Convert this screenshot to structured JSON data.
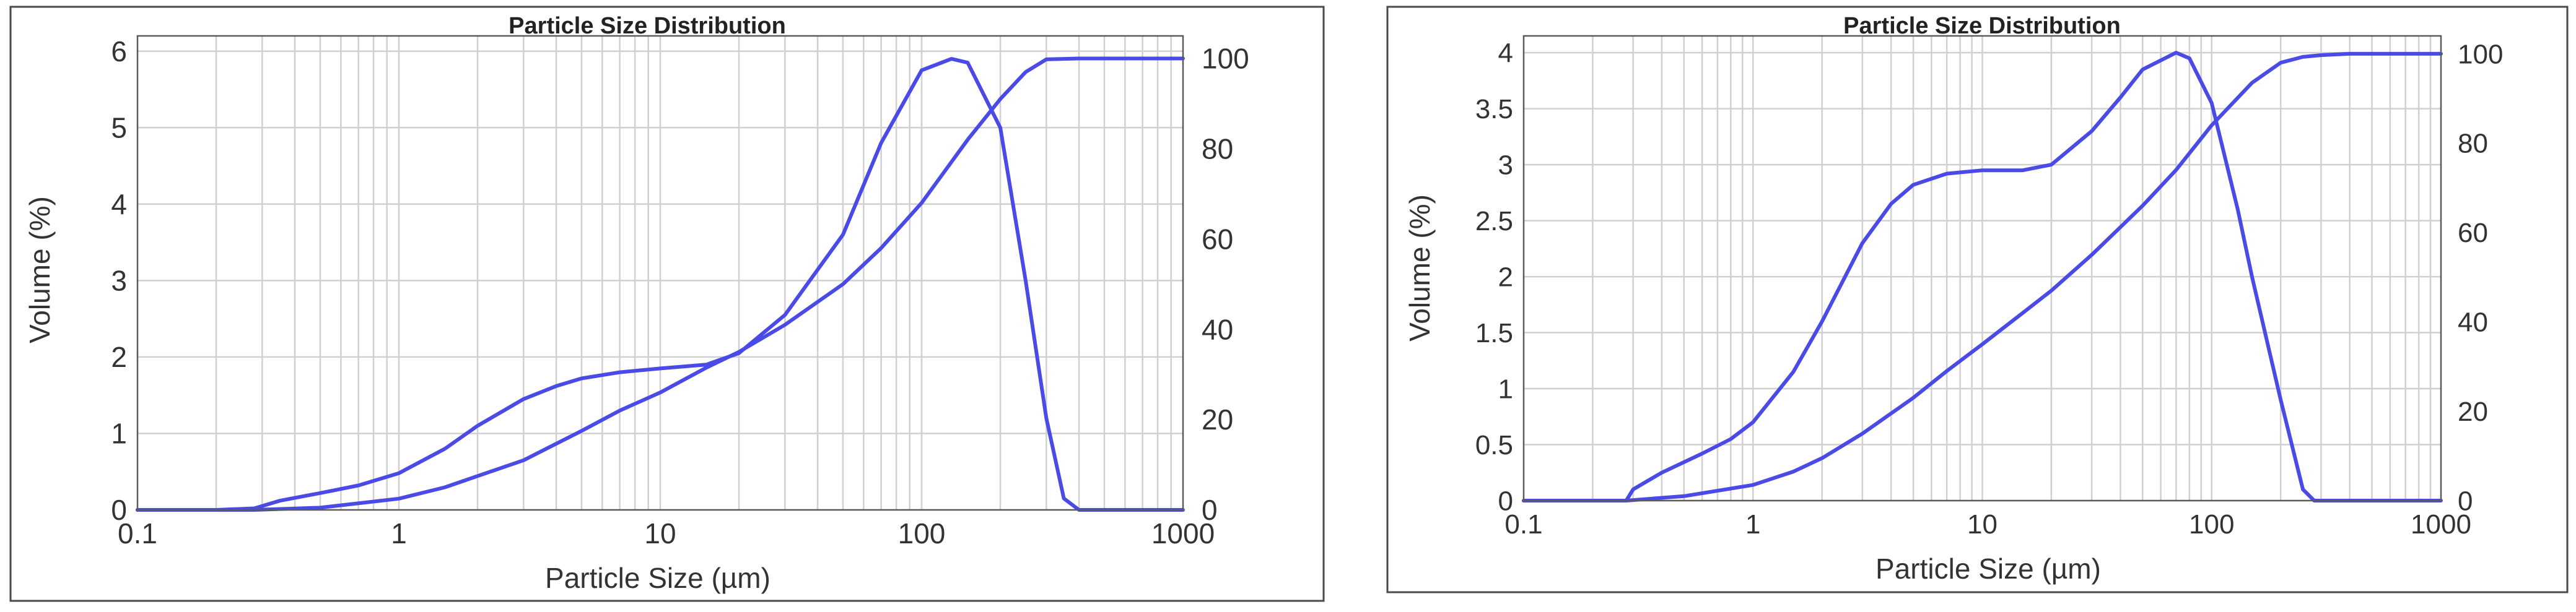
{
  "chart_data": [
    {
      "type": "line",
      "title": "Particle Size Distribution",
      "xlabel": "Particle Size (µm)",
      "ylabel": "Volume (%)",
      "x_scale": "log",
      "xlim": [
        0.1,
        1000
      ],
      "ylim": [
        0,
        6.2
      ],
      "y2lim": [
        0,
        105
      ],
      "x_ticks": [
        "0.1",
        "1",
        "10",
        "100",
        "1000"
      ],
      "y_ticks": [
        "0",
        "1",
        "2",
        "3",
        "4",
        "5",
        "6"
      ],
      "y2_ticks": [
        "0",
        "20",
        "40",
        "60",
        "80",
        "100"
      ],
      "grid": true,
      "series": [
        {
          "axis": "left",
          "x": [
            0.1,
            0.2,
            0.28,
            0.35,
            0.5,
            0.7,
            1,
            1.5,
            2,
            3,
            4,
            5,
            7,
            10,
            15,
            20,
            30,
            50,
            70,
            100,
            130,
            150,
            200,
            250,
            300,
            350,
            400,
            500,
            1000
          ],
          "y": [
            0,
            0,
            0.02,
            0.12,
            0.22,
            0.32,
            0.48,
            0.8,
            1.1,
            1.45,
            1.62,
            1.72,
            1.8,
            1.85,
            1.9,
            2.05,
            2.55,
            3.6,
            4.8,
            5.75,
            5.9,
            5.85,
            5.0,
            3.0,
            1.2,
            0.15,
            0,
            0,
            0
          ]
        },
        {
          "axis": "right",
          "x": [
            0.1,
            0.2,
            0.28,
            0.5,
            1,
            1.5,
            2,
            3,
            5,
            7,
            10,
            15,
            20,
            30,
            50,
            70,
            100,
            150,
            200,
            250,
            300,
            400,
            1000
          ],
          "y": [
            0,
            0,
            0,
            0.5,
            2.5,
            5,
            7.5,
            11,
            17.5,
            22,
            26,
            31.5,
            35,
            41,
            50,
            58,
            68,
            82,
            91,
            97,
            99.8,
            100,
            100
          ]
        }
      ]
    },
    {
      "type": "line",
      "title": "Particle Size Distribution",
      "xlabel": "Particle Size (µm)",
      "ylabel": "Volume (%)",
      "x_scale": "log",
      "xlim": [
        0.1,
        1000
      ],
      "ylim": [
        0,
        4.15
      ],
      "y2lim": [
        0,
        104
      ],
      "x_ticks": [
        "0.1",
        "1",
        "10",
        "100",
        "1000"
      ],
      "y_ticks": [
        "0",
        "0.5",
        "1",
        "1.5",
        "2",
        "2.5",
        "3",
        "3.5",
        "4"
      ],
      "y2_ticks": [
        "0",
        "20",
        "40",
        "60",
        "80",
        "100"
      ],
      "grid": true,
      "series": [
        {
          "axis": "left",
          "x": [
            0.1,
            0.28,
            0.3,
            0.4,
            0.6,
            0.8,
            1,
            1.5,
            2,
            3,
            4,
            5,
            7,
            10,
            15,
            20,
            30,
            40,
            50,
            70,
            80,
            100,
            130,
            150,
            200,
            250,
            280,
            300,
            1000
          ],
          "y": [
            0,
            0,
            0.1,
            0.25,
            0.42,
            0.55,
            0.7,
            1.15,
            1.6,
            2.3,
            2.65,
            2.82,
            2.92,
            2.95,
            2.95,
            3.0,
            3.3,
            3.6,
            3.85,
            4.0,
            3.95,
            3.55,
            2.6,
            2.0,
            0.9,
            0.1,
            0,
            0,
            0
          ]
        },
        {
          "axis": "right",
          "x": [
            0.1,
            0.28,
            0.5,
            1,
            1.5,
            2,
            3,
            5,
            7,
            10,
            15,
            20,
            30,
            50,
            70,
            100,
            150,
            200,
            250,
            300,
            400,
            1000
          ],
          "y": [
            0,
            0,
            1,
            3.5,
            6.5,
            9.5,
            15,
            23,
            29,
            35,
            42,
            47,
            55,
            66,
            74,
            84,
            93.5,
            98,
            99.3,
            99.7,
            100,
            100
          ]
        }
      ]
    }
  ]
}
